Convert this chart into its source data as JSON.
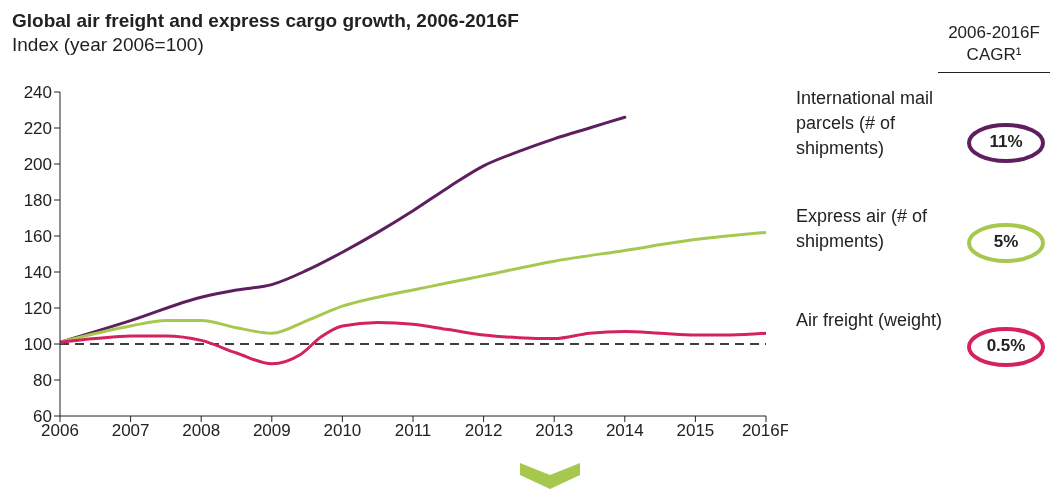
{
  "chart_data": {
    "type": "line",
    "title": "Global air freight and express cargo growth, 2006-2016F",
    "subtitle": "Index (year 2006=100)",
    "xlim": [
      2006,
      2016
    ],
    "xticks": [
      2006,
      2007,
      2008,
      2009,
      2010,
      2011,
      2012,
      2013,
      2014,
      2015,
      {
        "value": 2016,
        "label": "2016F"
      }
    ],
    "ylim": [
      60,
      240
    ],
    "yticks": [
      60,
      80,
      100,
      120,
      140,
      160,
      180,
      200,
      220,
      240
    ],
    "grid": false,
    "legend": "right",
    "marker": "none",
    "line_style": "solid",
    "ref_lines": [
      {
        "axis": "y",
        "value": 100,
        "color": "#000000",
        "line_style": "dashed"
      }
    ],
    "annotations": [
      "2006-2016F CAGR¹",
      "11%",
      "5%",
      "0.5%"
    ],
    "series": [
      {
        "name": "International mail parcels (# of shipments)",
        "color": "#5e1f5f",
        "x": [
          2006,
          2007,
          2008,
          2008.5,
          2009,
          2009.5,
          2010,
          2010.5,
          2011,
          2011.5,
          2012,
          2012.5,
          2013,
          2013.5,
          2014
        ],
        "values": [
          101,
          113,
          126,
          130,
          133,
          141,
          151,
          162,
          174,
          187,
          199,
          207,
          214,
          220,
          226
        ]
      },
      {
        "name": "Express air (# of shipments)",
        "color": "#a6c84f",
        "x": [
          2006,
          2007,
          2007.5,
          2008,
          2008.5,
          2009,
          2009.5,
          2010,
          2010.5,
          2011,
          2011.5,
          2012,
          2013,
          2014,
          2015,
          2016
        ],
        "values": [
          101,
          110,
          113,
          113,
          109,
          106,
          113,
          121,
          126,
          130,
          134,
          138,
          146,
          152,
          158,
          162
        ]
      },
      {
        "name": "Air freight (weight)",
        "color": "#d4225f",
        "x": [
          2006,
          2006.5,
          2007,
          2007.5,
          2008,
          2008.5,
          2009,
          2009.4,
          2009.7,
          2010,
          2010.5,
          2011,
          2011.5,
          2012,
          2012.5,
          2013,
          2013.5,
          2014,
          2014.5,
          2015,
          2015.5,
          2016
        ],
        "values": [
          101,
          103,
          104.5,
          104.5,
          102,
          95,
          89,
          94,
          104,
          110,
          112,
          111,
          108,
          105,
          103.5,
          103,
          106,
          107,
          106,
          105,
          105,
          106
        ]
      }
    ]
  }
}
